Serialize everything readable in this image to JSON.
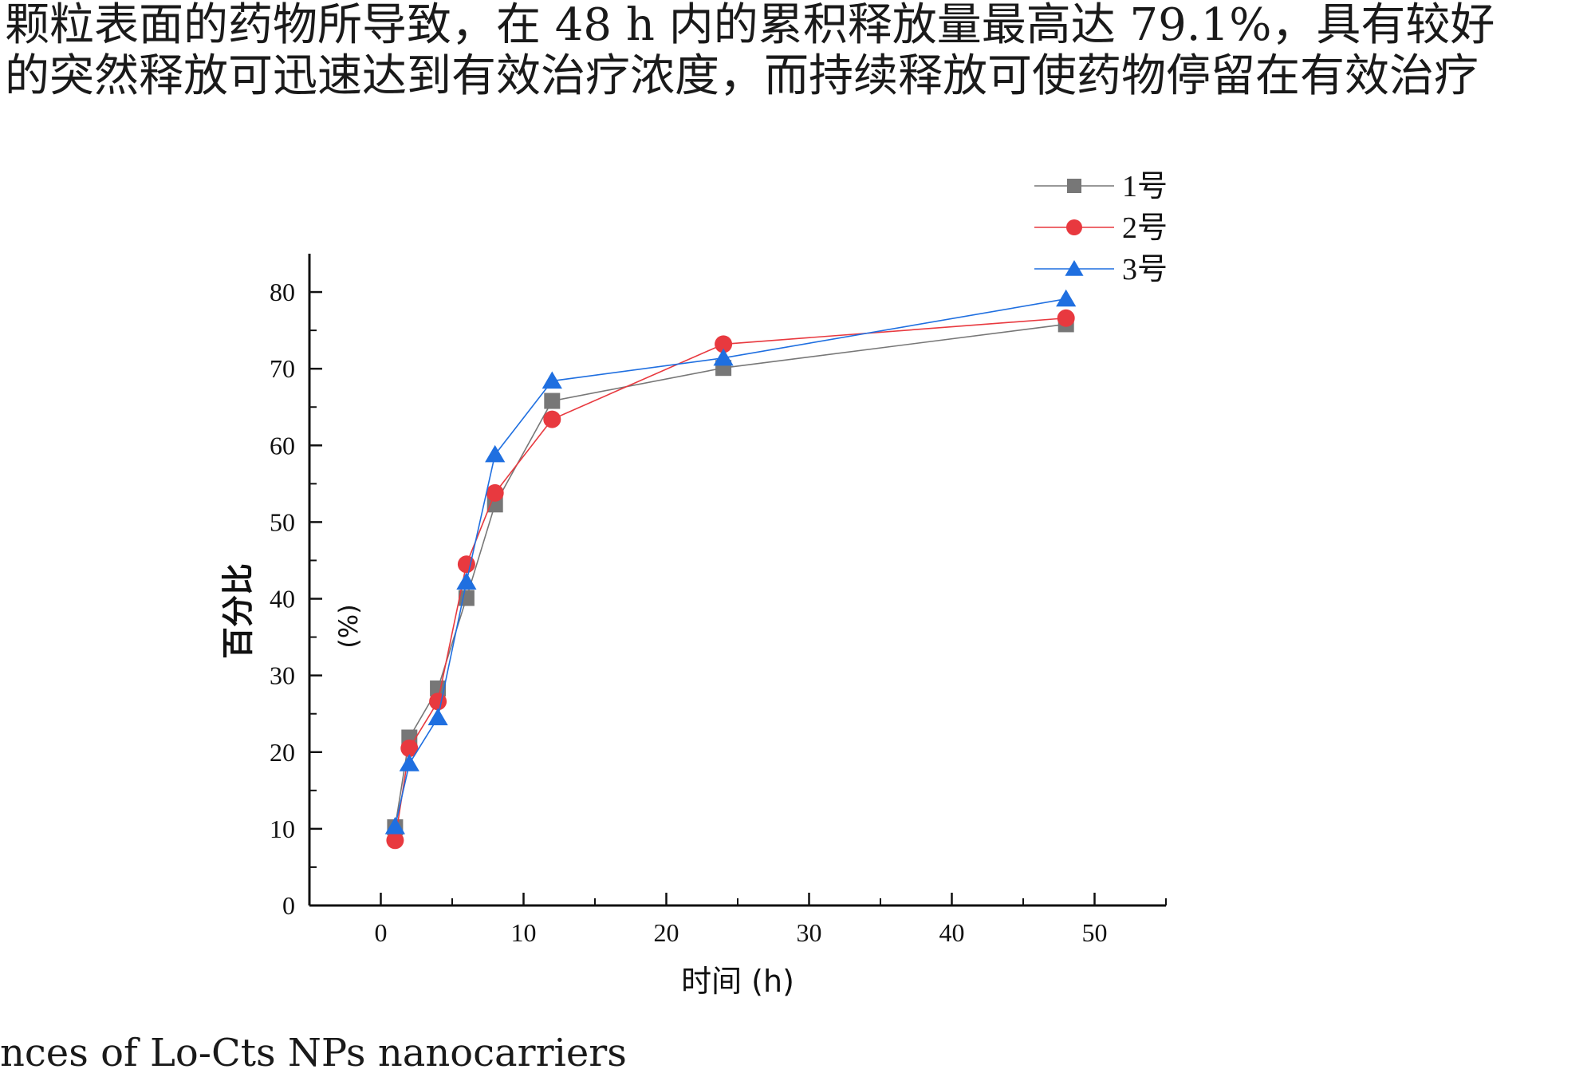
{
  "text": {
    "line1": "颗粒表面的药物所导致，在 48 h 内的累积释放量最高达 79.1%，具有较好",
    "line2": "的突然释放可迅速达到有效治疗浓度，而持续释放可使药物停留在有效治疗",
    "caption": "nces of Lo-Cts NPs nanocarriers"
  },
  "chart_data": {
    "type": "line",
    "title": "",
    "xlabel": "时间 (h)",
    "ylabel": "百分比",
    "ylabel_unit": "(%)",
    "xlim": [
      -5,
      55
    ],
    "ylim": [
      0,
      85
    ],
    "xticks": [
      0,
      10,
      20,
      30,
      40,
      50
    ],
    "yticks": [
      0,
      10,
      20,
      30,
      40,
      50,
      60,
      70,
      80
    ],
    "x": [
      1,
      2,
      4,
      6,
      8,
      12,
      24,
      48
    ],
    "legend_position": "top-right",
    "series": [
      {
        "name": "1号",
        "marker": "square",
        "color": "#777777",
        "values": [
          10.2,
          21.9,
          28.3,
          40.1,
          52.3,
          65.8,
          70.1,
          75.8
        ]
      },
      {
        "name": "2号",
        "marker": "circle",
        "color": "#e8393f",
        "values": [
          8.5,
          20.5,
          26.6,
          44.5,
          53.8,
          63.4,
          73.2,
          76.6
        ]
      },
      {
        "name": "3号",
        "marker": "triangle",
        "color": "#1f6fe0",
        "values": [
          10.3,
          18.5,
          24.5,
          42.2,
          58.8,
          68.4,
          71.4,
          79.1
        ]
      }
    ]
  }
}
